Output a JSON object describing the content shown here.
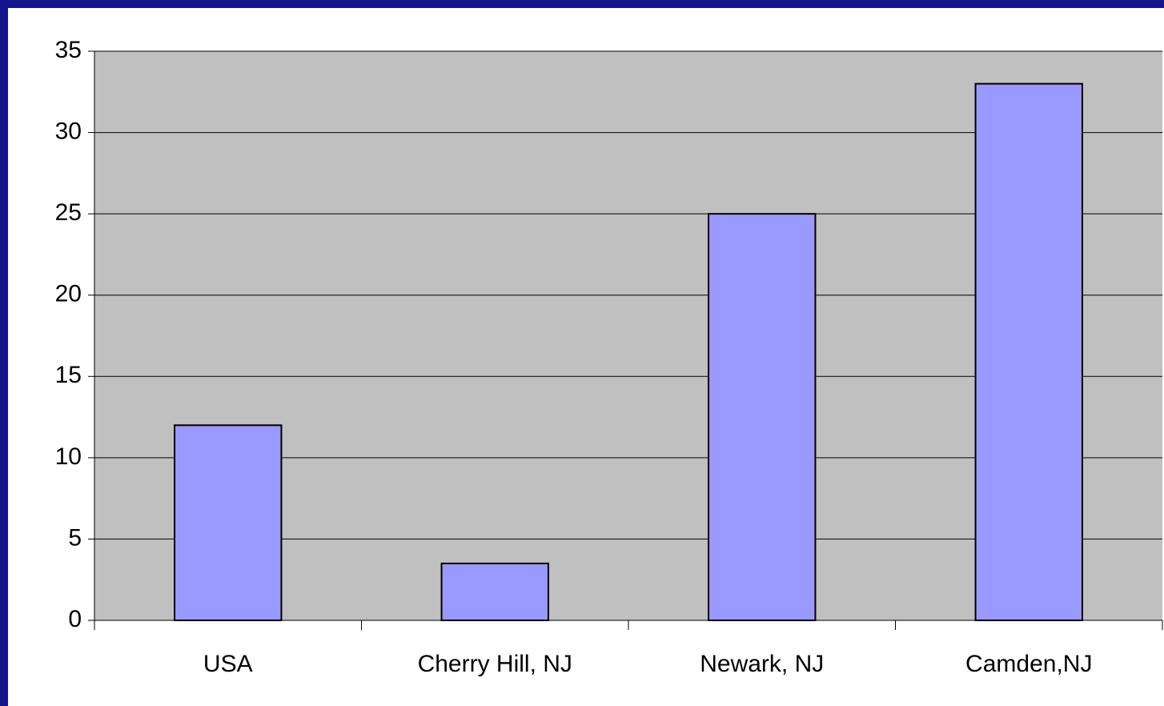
{
  "chart_data": {
    "type": "bar",
    "categories": [
      "USA",
      "Cherry Hill, NJ",
      "Newark, NJ",
      "Camden,NJ"
    ],
    "values": [
      12,
      3.5,
      25,
      33
    ],
    "color": "#9999ff",
    "ylim": [
      0,
      35
    ],
    "yticks": [
      0,
      5,
      10,
      15,
      20,
      25,
      30,
      35
    ],
    "grid": true
  }
}
